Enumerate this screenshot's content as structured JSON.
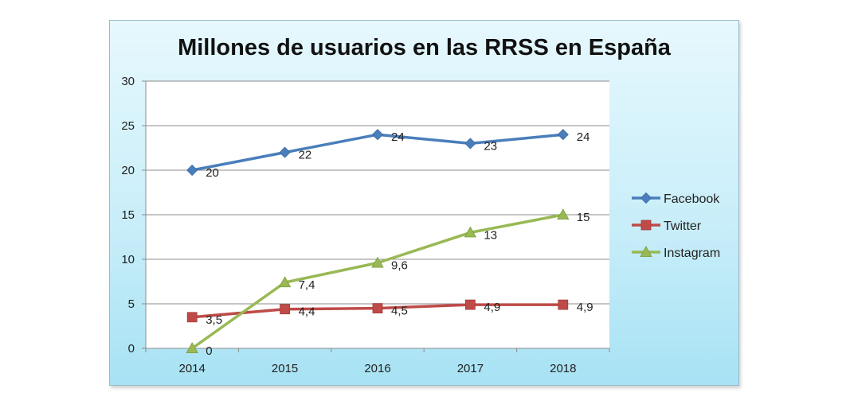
{
  "chart_data": {
    "type": "line",
    "title": "Millones de usuarios en las RRSS en España",
    "xlabel": "",
    "ylabel": "",
    "categories": [
      "2014",
      "2015",
      "2016",
      "2017",
      "2018"
    ],
    "ylim": [
      0,
      30
    ],
    "yticks": [
      "0",
      "5",
      "10",
      "15",
      "20",
      "25",
      "30"
    ],
    "grid": true,
    "legend_position": "right",
    "series": [
      {
        "name": "Facebook",
        "color": "#4a7ebb",
        "marker": "diamond",
        "values": [
          20,
          22,
          24,
          23,
          24
        ],
        "labels": [
          "20",
          "22",
          "24",
          "23",
          "24"
        ]
      },
      {
        "name": "Twitter",
        "color": "#be4b48",
        "marker": "square",
        "values": [
          3.5,
          4.4,
          4.5,
          4.9,
          4.9
        ],
        "labels": [
          "3,5",
          "4,4",
          "4,5",
          "4,9",
          "4,9"
        ]
      },
      {
        "name": "Instagram",
        "color": "#98b954",
        "marker": "triangle",
        "values": [
          0,
          7.4,
          9.6,
          13,
          15
        ],
        "labels": [
          "0",
          "7,4",
          "9,6",
          "13",
          "15"
        ]
      }
    ]
  }
}
